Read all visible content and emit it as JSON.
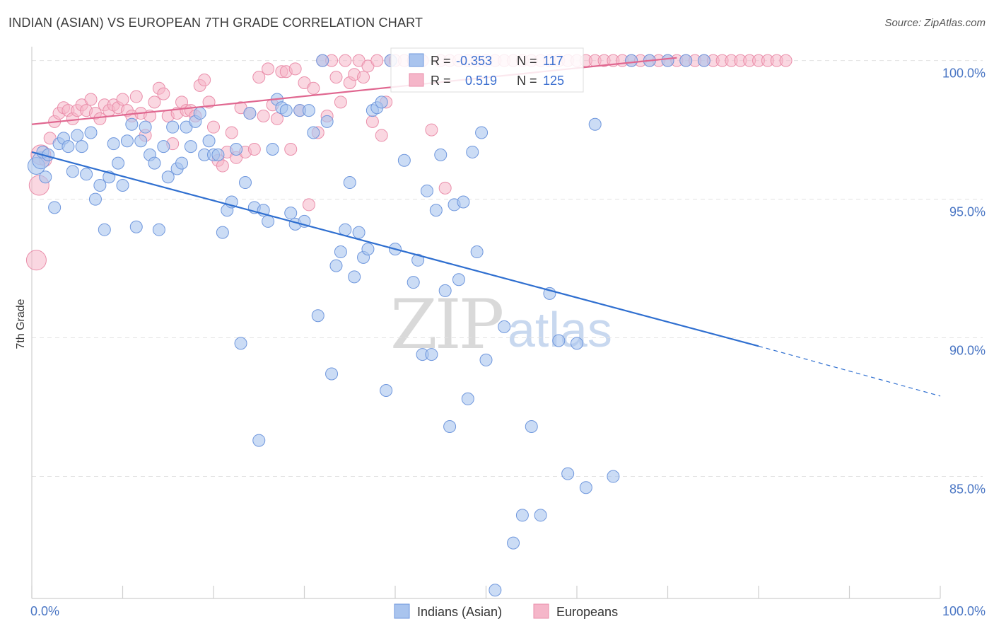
{
  "header": {
    "title": "INDIAN (ASIAN) VS EUROPEAN 7TH GRADE CORRELATION CHART",
    "source": "Source: ZipAtlas.com"
  },
  "watermark": {
    "zip": "ZIP",
    "atlas": "atlas"
  },
  "stats": {
    "r_label": "R =",
    "n_label": "N =",
    "indians": {
      "r": "-0.353",
      "n": "117"
    },
    "europeans": {
      "r": "0.519",
      "n": "125"
    }
  },
  "colors": {
    "blue_fill": "#a9c4ee",
    "blue_stroke": "#6f97dd",
    "blue_line": "#2f6fd0",
    "pink_fill": "#f5b6c9",
    "pink_stroke": "#ea8fab",
    "pink_line": "#e06790"
  },
  "chart_data": {
    "type": "scatter",
    "title": "INDIAN (ASIAN) VS EUROPEAN 7TH GRADE CORRELATION CHART",
    "xlabel": "",
    "ylabel": "7th Grade",
    "xlim": [
      0,
      100
    ],
    "ylim": [
      80.6,
      100.5
    ],
    "x_tick_labels": [
      "0.0%",
      "100.0%"
    ],
    "y_ticks": [
      85,
      90,
      95,
      100
    ],
    "y_tick_labels": [
      "85.0%",
      "90.0%",
      "95.0%",
      "100.0%"
    ],
    "grid": true,
    "legend": [
      "Indians (Asian)",
      "Europeans"
    ],
    "legend_position": "bottom-center",
    "series": [
      {
        "name": "Indians (Asian)",
        "r": -0.353,
        "n": 117,
        "trend": {
          "x_start": 0,
          "y_start": 96.7,
          "x_solid_end": 80,
          "y_solid_end": 89.7,
          "x_dash_end": 100,
          "y_dash_end": 87.9
        },
        "points": [
          [
            0.5,
            96.2
          ],
          [
            1,
            96.4
          ],
          [
            1.2,
            96.7
          ],
          [
            1.5,
            95.8
          ],
          [
            1.8,
            96.6
          ],
          [
            2.5,
            94.7
          ],
          [
            3,
            97.0
          ],
          [
            3.5,
            97.2
          ],
          [
            4,
            96.9
          ],
          [
            4.5,
            96.0
          ],
          [
            5,
            97.3
          ],
          [
            5.5,
            96.9
          ],
          [
            6,
            95.9
          ],
          [
            6.5,
            97.4
          ],
          [
            7,
            95.0
          ],
          [
            7.5,
            95.5
          ],
          [
            8,
            93.9
          ],
          [
            8.5,
            95.8
          ],
          [
            9,
            97.0
          ],
          [
            9.5,
            96.3
          ],
          [
            10,
            95.5
          ],
          [
            10.5,
            97.1
          ],
          [
            11,
            97.7
          ],
          [
            11.5,
            94.0
          ],
          [
            12,
            97.1
          ],
          [
            12.5,
            97.6
          ],
          [
            13,
            96.6
          ],
          [
            13.5,
            96.3
          ],
          [
            14,
            93.9
          ],
          [
            14.5,
            96.9
          ],
          [
            15,
            95.8
          ],
          [
            15.5,
            97.6
          ],
          [
            16,
            96.1
          ],
          [
            16.5,
            96.3
          ],
          [
            17,
            97.6
          ],
          [
            17.5,
            96.9
          ],
          [
            18,
            97.8
          ],
          [
            18.5,
            98.1
          ],
          [
            19,
            96.6
          ],
          [
            19.5,
            97.1
          ],
          [
            20,
            96.6
          ],
          [
            20.5,
            96.6
          ],
          [
            21,
            93.8
          ],
          [
            21.5,
            94.6
          ],
          [
            22,
            94.9
          ],
          [
            22.5,
            96.8
          ],
          [
            23,
            89.8
          ],
          [
            23.5,
            95.6
          ],
          [
            24,
            98.1
          ],
          [
            24.5,
            94.7
          ],
          [
            25,
            86.3
          ],
          [
            25.5,
            94.6
          ],
          [
            26,
            94.2
          ],
          [
            26.5,
            96.8
          ],
          [
            27,
            98.6
          ],
          [
            27.5,
            98.3
          ],
          [
            28,
            98.2
          ],
          [
            28.5,
            94.5
          ],
          [
            29,
            94.1
          ],
          [
            29.5,
            98.2
          ],
          [
            30,
            94.2
          ],
          [
            30.5,
            98.2
          ],
          [
            31,
            97.4
          ],
          [
            31.5,
            90.8
          ],
          [
            32,
            100.0
          ],
          [
            32.5,
            97.8
          ],
          [
            33,
            88.7
          ],
          [
            33.5,
            92.6
          ],
          [
            34,
            93.1
          ],
          [
            34.5,
            93.9
          ],
          [
            35,
            95.6
          ],
          [
            35.5,
            92.2
          ],
          [
            36,
            93.8
          ],
          [
            36.5,
            92.9
          ],
          [
            37,
            93.2
          ],
          [
            37.5,
            98.2
          ],
          [
            38,
            98.3
          ],
          [
            38.5,
            98.5
          ],
          [
            39,
            88.1
          ],
          [
            39.5,
            100.0
          ],
          [
            40,
            93.2
          ],
          [
            41,
            96.4
          ],
          [
            42,
            92.0
          ],
          [
            42.5,
            92.8
          ],
          [
            43,
            89.4
          ],
          [
            43.5,
            95.3
          ],
          [
            44,
            89.4
          ],
          [
            44.5,
            94.6
          ],
          [
            45,
            96.6
          ],
          [
            45.5,
            91.7
          ],
          [
            46,
            86.8
          ],
          [
            46.5,
            94.8
          ],
          [
            47,
            92.1
          ],
          [
            47.5,
            94.9
          ],
          [
            48,
            87.8
          ],
          [
            48.5,
            96.7
          ],
          [
            49,
            93.1
          ],
          [
            49.5,
            97.4
          ],
          [
            50,
            89.2
          ],
          [
            51,
            80.9
          ],
          [
            52,
            90.4
          ],
          [
            53,
            82.6
          ],
          [
            54,
            83.6
          ],
          [
            55,
            86.8
          ],
          [
            56,
            83.6
          ],
          [
            57,
            91.6
          ],
          [
            58,
            89.9
          ],
          [
            59,
            85.1
          ],
          [
            60,
            89.8
          ],
          [
            61,
            84.6
          ],
          [
            62,
            97.7
          ],
          [
            64,
            85.0
          ],
          [
            66,
            100.0
          ],
          [
            68,
            100.0
          ],
          [
            70,
            100.0
          ],
          [
            72,
            100.0
          ],
          [
            74,
            100.0
          ]
        ]
      },
      {
        "name": "Europeans",
        "r": 0.519,
        "n": 125,
        "trend": {
          "x_start": 0,
          "y_start": 97.7,
          "x_end": 71,
          "y_end": 100.1
        },
        "points": [
          [
            0.5,
            92.8
          ],
          [
            0.8,
            95.5
          ],
          [
            1,
            96.6
          ],
          [
            1.5,
            96.4
          ],
          [
            2,
            97.2
          ],
          [
            2.5,
            97.8
          ],
          [
            3,
            98.1
          ],
          [
            3.5,
            98.3
          ],
          [
            4,
            98.2
          ],
          [
            4.5,
            97.9
          ],
          [
            5,
            98.2
          ],
          [
            5.5,
            98.4
          ],
          [
            6,
            98.2
          ],
          [
            6.5,
            98.6
          ],
          [
            7,
            98.1
          ],
          [
            7.5,
            97.9
          ],
          [
            8,
            98.4
          ],
          [
            8.5,
            98.2
          ],
          [
            9,
            98.4
          ],
          [
            9.5,
            98.3
          ],
          [
            10,
            98.6
          ],
          [
            10.5,
            98.2
          ],
          [
            11,
            98.0
          ],
          [
            11.5,
            98.7
          ],
          [
            12,
            98.1
          ],
          [
            12.5,
            97.3
          ],
          [
            13,
            98.0
          ],
          [
            13.5,
            98.5
          ],
          [
            14,
            99.0
          ],
          [
            14.5,
            98.8
          ],
          [
            15,
            98.0
          ],
          [
            15.5,
            97.0
          ],
          [
            16,
            98.1
          ],
          [
            16.5,
            98.5
          ],
          [
            17,
            98.2
          ],
          [
            17.5,
            98.2
          ],
          [
            18,
            98.0
          ],
          [
            18.5,
            99.1
          ],
          [
            19,
            99.3
          ],
          [
            19.5,
            98.5
          ],
          [
            20,
            97.6
          ],
          [
            20.5,
            96.4
          ],
          [
            21,
            96.2
          ],
          [
            21.5,
            96.7
          ],
          [
            22,
            97.4
          ],
          [
            22.5,
            96.5
          ],
          [
            23,
            98.3
          ],
          [
            23.5,
            96.7
          ],
          [
            24,
            98.1
          ],
          [
            24.5,
            96.8
          ],
          [
            25,
            99.4
          ],
          [
            25.5,
            98.0
          ],
          [
            26,
            99.7
          ],
          [
            26.5,
            98.4
          ],
          [
            27,
            97.9
          ],
          [
            27.5,
            99.6
          ],
          [
            28,
            99.6
          ],
          [
            28.5,
            96.8
          ],
          [
            29,
            99.7
          ],
          [
            29.5,
            98.2
          ],
          [
            30,
            99.2
          ],
          [
            30.5,
            94.8
          ],
          [
            31,
            99.0
          ],
          [
            31.5,
            97.4
          ],
          [
            32,
            100.0
          ],
          [
            32.5,
            98.0
          ],
          [
            33,
            100.0
          ],
          [
            33.5,
            99.4
          ],
          [
            34,
            98.5
          ],
          [
            34.5,
            100.0
          ],
          [
            35,
            99.2
          ],
          [
            35.5,
            99.5
          ],
          [
            36,
            100.0
          ],
          [
            36.5,
            99.4
          ],
          [
            37,
            99.8
          ],
          [
            37.5,
            97.8
          ],
          [
            38,
            100.0
          ],
          [
            38.5,
            97.3
          ],
          [
            39,
            98.5
          ],
          [
            39.5,
            100.0
          ],
          [
            40,
            100.0
          ],
          [
            41,
            100.0
          ],
          [
            42,
            100.0
          ],
          [
            43,
            100.0
          ],
          [
            44,
            97.5
          ],
          [
            45,
            100.0
          ],
          [
            45.5,
            95.4
          ],
          [
            46,
            100.0
          ],
          [
            47,
            100.0
          ],
          [
            48,
            100.0
          ],
          [
            49,
            100.0
          ],
          [
            50,
            100.0
          ],
          [
            51,
            100.0
          ],
          [
            52,
            100.0
          ],
          [
            53,
            100.0
          ],
          [
            54,
            100.0
          ],
          [
            55,
            100.0
          ],
          [
            56,
            100.0
          ],
          [
            57,
            100.0
          ],
          [
            58,
            100.0
          ],
          [
            59,
            100.0
          ],
          [
            60,
            100.0
          ],
          [
            61,
            100.0
          ],
          [
            62,
            100.0
          ],
          [
            63,
            100.0
          ],
          [
            64,
            100.0
          ],
          [
            65,
            100.0
          ],
          [
            66,
            100.0
          ],
          [
            67,
            100.0
          ],
          [
            68,
            100.0
          ],
          [
            69,
            100.0
          ],
          [
            70,
            100.0
          ],
          [
            71,
            100.0
          ],
          [
            72,
            100.0
          ],
          [
            73,
            100.0
          ],
          [
            74,
            100.0
          ],
          [
            75,
            100.0
          ],
          [
            76,
            100.0
          ],
          [
            77,
            100.0
          ],
          [
            78,
            100.0
          ],
          [
            79,
            100.0
          ],
          [
            80,
            100.0
          ],
          [
            81,
            100.0
          ],
          [
            82,
            100.0
          ],
          [
            83,
            100.0
          ]
        ]
      }
    ]
  },
  "legend": {
    "indians_label": "Indians (Asian)",
    "europeans_label": "Europeans"
  }
}
